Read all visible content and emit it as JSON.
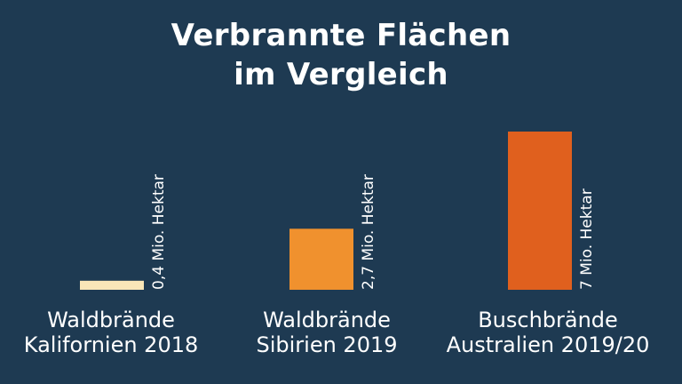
{
  "chart_data": {
    "type": "bar",
    "title_lines": [
      "Verbrannte Flächen",
      "im Vergleich"
    ],
    "categories": [
      [
        "Waldbrände",
        "Kalifornien 2018"
      ],
      [
        "Waldbrände",
        "Sibirien 2019"
      ],
      [
        "Buschbrände",
        "Australien 2019/20"
      ]
    ],
    "values": [
      0.4,
      2.7,
      7
    ],
    "value_labels": [
      "0,4 Mio. Hektar",
      "2,7 Mio. Hektar",
      "7 Mio. Hektar"
    ],
    "unit": "Mio. Hektar",
    "colors": [
      "#f9e6b8",
      "#f0912e",
      "#e0601e"
    ],
    "xlabel": "",
    "ylabel": "",
    "ylim": [
      0,
      7
    ],
    "grid": false,
    "legend": "none"
  }
}
